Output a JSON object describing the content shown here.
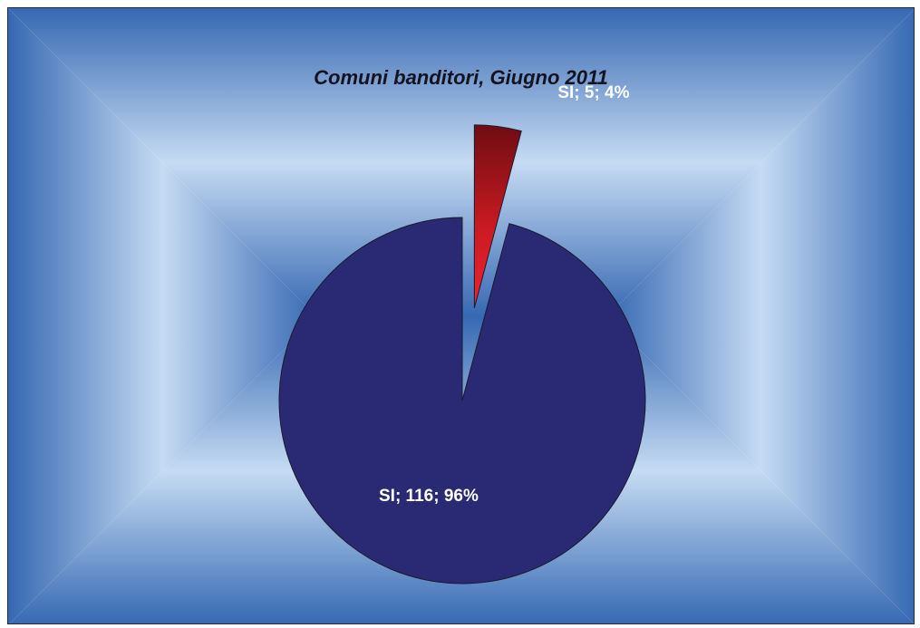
{
  "chart_data": {
    "type": "pie",
    "title": "Comuni banditori, Giugno 2011",
    "slices": [
      {
        "category": "SI",
        "value": 116,
        "percent": 96,
        "label": "SI; 116; 96%",
        "color": "#292a73",
        "exploded": false
      },
      {
        "category": "SI",
        "value": 5,
        "percent": 4,
        "label": "SI; 5; 4%",
        "color": "#d01a22",
        "exploded": true
      }
    ],
    "legend": "none",
    "background_colors": {
      "center": "#c6dbf3",
      "edge": "#3668b2"
    }
  }
}
